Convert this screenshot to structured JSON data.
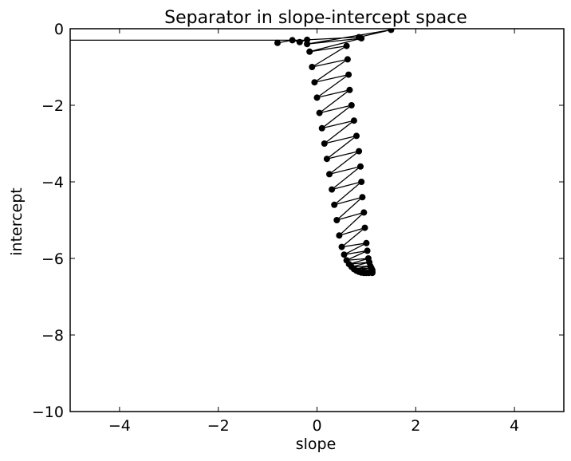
{
  "chart_data": {
    "type": "line",
    "title": "Separator in slope-intercept space",
    "xlabel": "slope",
    "ylabel": "intercept",
    "xlim": [
      -5,
      5
    ],
    "ylim": [
      -10,
      0
    ],
    "xticks": [
      -4,
      -2,
      0,
      2,
      4
    ],
    "xtick_labels": [
      "−4",
      "−2",
      "0",
      "2",
      "4"
    ],
    "yticks": [
      0,
      -2,
      -4,
      -6,
      -8,
      -10
    ],
    "ytick_labels": [
      "0",
      "−2",
      "−4",
      "−6",
      "−8",
      "−10"
    ],
    "grid": false,
    "series": [
      {
        "style": "line-with-circle-markers",
        "color": "#000000",
        "x": [
          -0.8,
          -0.5,
          -0.35,
          -0.2,
          0.85,
          1.5,
          -0.2,
          0.9,
          -0.15,
          0.6,
          -0.1,
          0.62,
          -0.05,
          0.64,
          0.0,
          0.66,
          0.05,
          0.7,
          0.1,
          0.75,
          0.15,
          0.8,
          0.2,
          0.85,
          0.25,
          0.88,
          0.3,
          0.9,
          0.35,
          0.92,
          0.4,
          0.95,
          0.45,
          0.97,
          0.5,
          1.0,
          0.55,
          1.02,
          0.6,
          1.04,
          0.65,
          1.06,
          0.7,
          1.08,
          0.75,
          1.1,
          0.8,
          1.12,
          0.85,
          1.12,
          0.9,
          1.12,
          0.95,
          1.12,
          1.0,
          1.12,
          1.05
        ],
        "y": [
          -0.37,
          -0.3,
          -0.35,
          -0.29,
          -0.22,
          -0.03,
          -0.4,
          -0.25,
          -0.6,
          -0.45,
          -1.0,
          -0.8,
          -1.4,
          -1.2,
          -1.8,
          -1.6,
          -2.2,
          -2.0,
          -2.6,
          -2.4,
          -3.0,
          -2.8,
          -3.4,
          -3.2,
          -3.8,
          -3.6,
          -4.2,
          -4.0,
          -4.6,
          -4.4,
          -5.0,
          -4.8,
          -5.4,
          -5.2,
          -5.7,
          -5.6,
          -5.9,
          -5.8,
          -6.05,
          -6.0,
          -6.15,
          -6.1,
          -6.22,
          -6.2,
          -6.28,
          -6.25,
          -6.32,
          -6.3,
          -6.35,
          -6.33,
          -6.37,
          -6.36,
          -6.38,
          -6.37,
          -6.38,
          -6.38,
          -6.38
        ]
      },
      {
        "style": "line",
        "color": "#000000",
        "x": [
          -5,
          -0.2
        ],
        "y": [
          -0.3,
          -0.3
        ]
      }
    ]
  }
}
